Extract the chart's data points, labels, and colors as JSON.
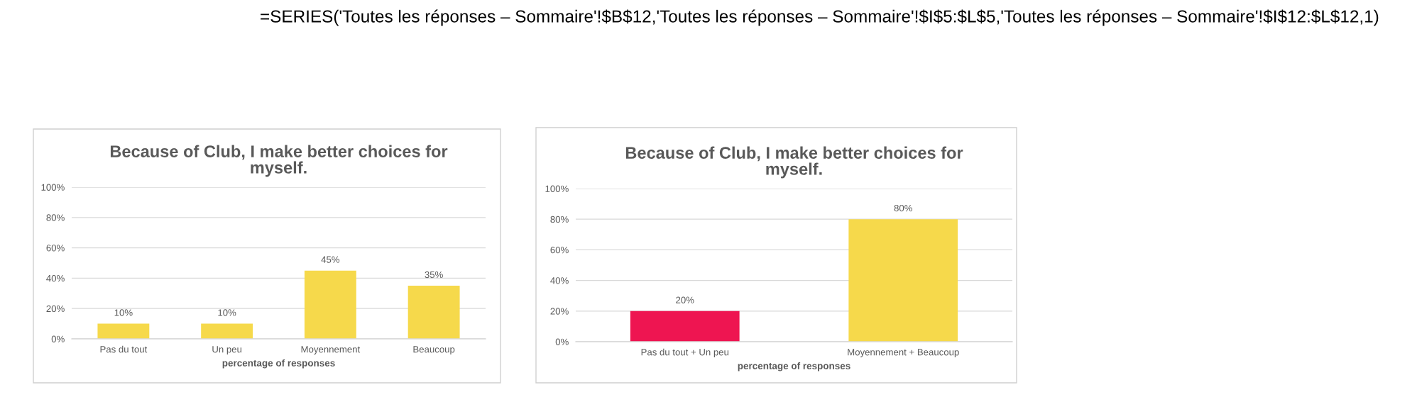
{
  "chart_data": [
    {
      "type": "bar",
      "title": "Because of Club, I make better choices for myself.",
      "xlabel": "percentage of responses",
      "categories": [
        "Pas du tout",
        "Un peu",
        "Moyennement",
        "Beaucoup"
      ],
      "values": [
        10,
        10,
        45,
        35
      ],
      "colors": [
        "#f6d94b",
        "#f6d94b",
        "#f6d94b",
        "#f6d94b"
      ],
      "value_labels": [
        "10%",
        "10%",
        "45%",
        "35%"
      ],
      "ylim": [
        0,
        100
      ],
      "yticks": [
        {
          "value": 0,
          "label": "0%"
        },
        {
          "value": 20,
          "label": "20%"
        },
        {
          "value": 40,
          "label": "40%"
        },
        {
          "value": 60,
          "label": "60%"
        },
        {
          "value": 80,
          "label": "80%"
        },
        {
          "value": 100,
          "label": "100%"
        }
      ],
      "grid": "y",
      "annotations": [
        "=SERIES('Toutes les réponses – Sommaire'!$B$12,'Toutes les réponses – Sommaire'!$I$5:$L$5,'Toutes les réponses – Sommaire'!$I$12:$L$12,1)"
      ]
    },
    {
      "type": "bar",
      "title": "Because of Club, I make better choices for myself.",
      "xlabel": "percentage of responses",
      "categories": [
        "Pas du tout + Un peu",
        "Moyennement + Beaucoup"
      ],
      "values": [
        20,
        80
      ],
      "colors": [
        "#ee1551",
        "#f6d94b"
      ],
      "value_labels": [
        "20%",
        "80%"
      ],
      "ylim": [
        0,
        100
      ],
      "yticks": [
        {
          "value": 0,
          "label": "0%"
        },
        {
          "value": 20,
          "label": "20%"
        },
        {
          "value": 40,
          "label": "40%"
        },
        {
          "value": 60,
          "label": "60%"
        },
        {
          "value": 80,
          "label": "80%"
        },
        {
          "value": 100,
          "label": "100%"
        }
      ],
      "grid": "y"
    }
  ]
}
